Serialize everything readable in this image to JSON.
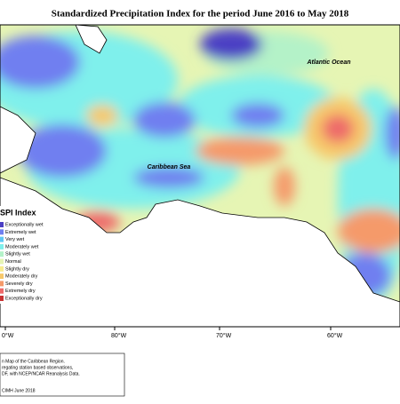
{
  "header": {
    "title": "Standardized Precipitation Index for the period June 2016 to May 2018"
  },
  "map_labels": {
    "ocean": "Atlantic Ocean",
    "sea": "Caribbean Sea"
  },
  "legend": {
    "title": "SPI Index",
    "items": [
      {
        "label": "Exceptionally wet",
        "color": "#4b3fc4"
      },
      {
        "label": "Extremely wet",
        "color": "#6f7ff0"
      },
      {
        "label": "Very wet",
        "color": "#5fc8f5"
      },
      {
        "label": "Moderately wet",
        "color": "#7ff0ec"
      },
      {
        "label": "Slightly wet",
        "color": "#b4f2c8"
      },
      {
        "label": "Normal",
        "color": "#e6f5b4"
      },
      {
        "label": "Slightly dry",
        "color": "#f7ec90"
      },
      {
        "label": "Moderately dry",
        "color": "#f7c86a"
      },
      {
        "label": "Severely dry",
        "color": "#f59a6a"
      },
      {
        "label": "Extremely dry",
        "color": "#ee6a6a"
      },
      {
        "label": "Exceptionally dry",
        "color": "#c83232"
      }
    ]
  },
  "axis": {
    "longitudes": [
      "0°W",
      "80°W",
      "70°W",
      "60°W"
    ]
  },
  "footer": {
    "lines": [
      "n Map of the Caribbean Region.",
      "regating station based observations,",
      "DF, with NCEP/NCAR Reanalysis Data."
    ],
    "credit": "CIMH June 2018"
  }
}
